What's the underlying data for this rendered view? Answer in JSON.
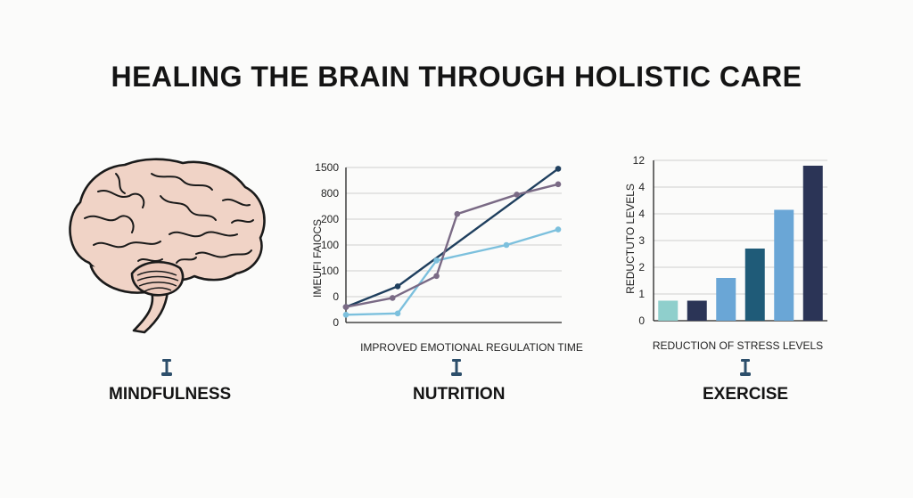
{
  "title": "HEALING THE BRAIN THROUGH HOLISTIC CARE",
  "sections": {
    "mindfulness": "MINDFULNESS",
    "nutrition": "NUTRITION",
    "exercise": "EXERCISE"
  },
  "icons": [
    "brain-illustration",
    "pin-icon"
  ],
  "colors": {
    "navy": "#1f3f5e",
    "light_blue": "#7cc0dd",
    "mauve": "#7a6a85",
    "teal": "#8fcfcc",
    "dark_navy": "#2b3456",
    "mid_blue": "#6aa6d6",
    "ocean": "#1f5b78"
  },
  "chart_data": [
    {
      "type": "line",
      "title": "",
      "xlabel": "IMPROVED EMOTIONAL REGULATION TIME",
      "ylabel": "IMEUFI FAIOCS",
      "ytick_labels": [
        "0",
        "0",
        "100",
        "100",
        "200",
        "800",
        "1500"
      ],
      "grid": true,
      "series": [
        {
          "color": "#1f3f5e",
          "x": [
            0,
            1,
            4.1
          ],
          "y": [
            0.6,
            1.4,
            5.95
          ]
        },
        {
          "color": "#7cc0dd",
          "x": [
            0,
            1,
            1.75,
            3.1,
            4.1
          ],
          "y": [
            0.3,
            0.35,
            2.4,
            3.0,
            3.6
          ]
        },
        {
          "color": "#7a6a85",
          "x": [
            0,
            0.9,
            1.75,
            2.15,
            3.3,
            4.1
          ],
          "y": [
            0.6,
            0.95,
            1.8,
            4.2,
            4.95,
            5.35
          ]
        }
      ]
    },
    {
      "type": "bar",
      "title": "",
      "xlabel": "REDUCTION OF STRESS LEVELS",
      "ylabel": "REDUCTUTO LEVELS",
      "ytick_labels": [
        "0",
        "1",
        "2",
        "3",
        "4",
        "4",
        "12"
      ],
      "grid": true,
      "values": [
        0.75,
        0.75,
        1.6,
        2.7,
        4.15,
        5.8
      ],
      "colors": [
        "#8fcfcc",
        "#2b3456",
        "#6aa6d6",
        "#1f5b78",
        "#6aa6d6",
        "#2b3456"
      ]
    }
  ]
}
